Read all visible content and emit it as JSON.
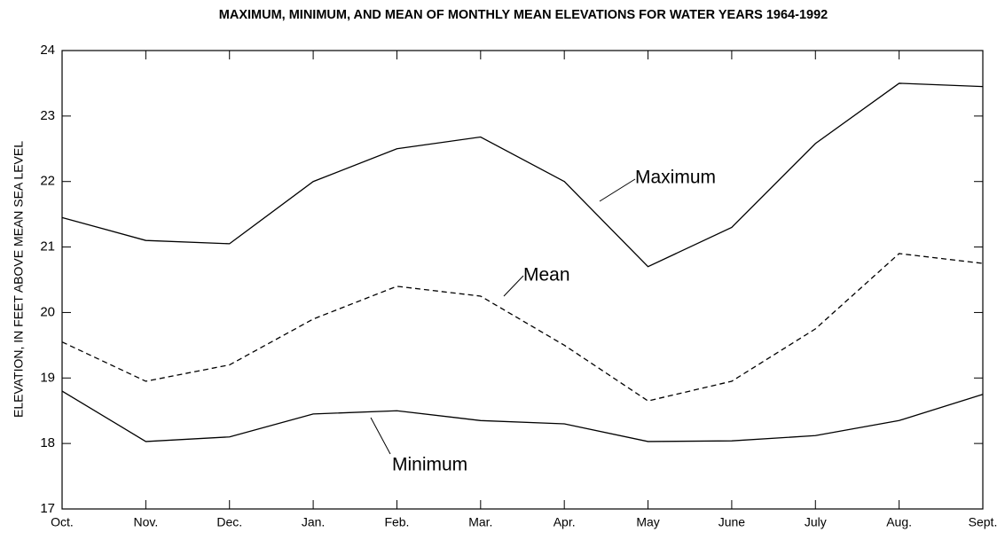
{
  "chart_data": {
    "type": "line",
    "title": "MAXIMUM, MINIMUM, AND MEAN OF MONTHLY MEAN ELEVATIONS FOR WATER YEARS 1964-1992",
    "y_label": "ELEVATION, IN FEET ABOVE MEAN SEA LEVEL",
    "categories": [
      "Oct.",
      "Nov.",
      "Dec.",
      "Jan.",
      "Feb.",
      "Mar.",
      "Apr.",
      "May",
      "June",
      "July",
      "Aug.",
      "Sept."
    ],
    "series": [
      {
        "name": "Maximum",
        "color": "#000000",
        "style": "solid",
        "values": [
          21.45,
          21.1,
          21.05,
          22.0,
          22.5,
          22.68,
          22.0,
          20.7,
          21.3,
          22.58,
          23.5,
          23.45
        ]
      },
      {
        "name": "Mean",
        "color": "#000000",
        "style": "dashed",
        "values": [
          19.55,
          18.95,
          19.2,
          19.9,
          20.4,
          20.25,
          19.5,
          18.65,
          18.95,
          19.75,
          20.9,
          20.75
        ]
      },
      {
        "name": "Minimum",
        "color": "#000000",
        "style": "solid",
        "values": [
          18.8,
          18.03,
          18.1,
          18.45,
          18.5,
          18.35,
          18.3,
          18.03,
          18.04,
          18.12,
          18.35,
          18.75
        ]
      }
    ],
    "ylim": [
      17,
      24
    ],
    "yticks": [
      17,
      18,
      19,
      20,
      21,
      22,
      23,
      24
    ],
    "grid": false
  }
}
